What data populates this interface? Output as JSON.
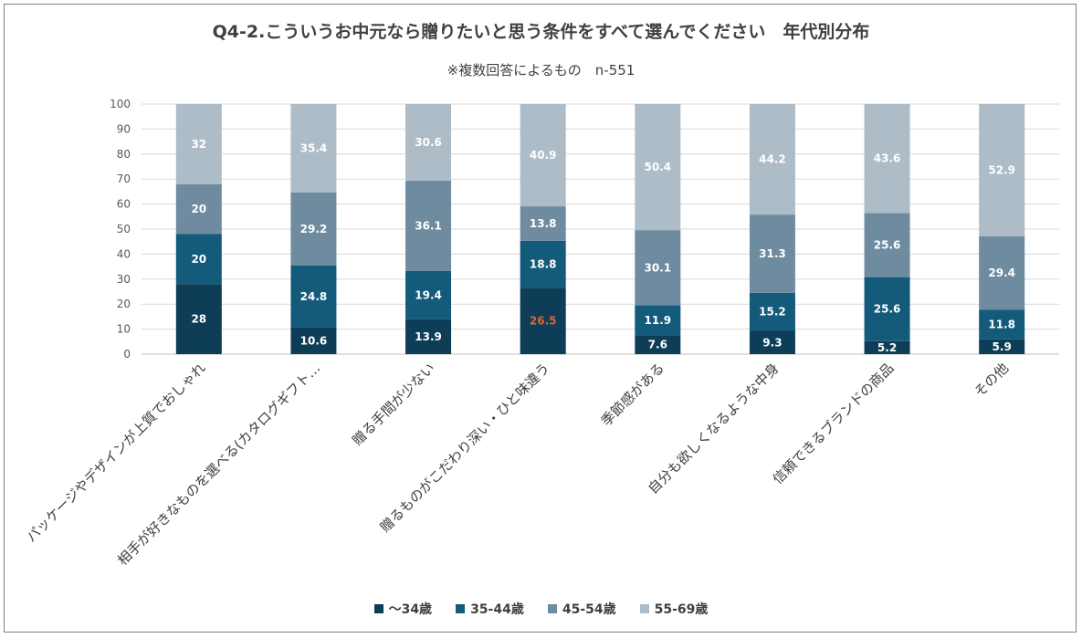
{
  "title": "Q4-2.こういうお中元なら贈りたいと思う条件をすべて選んでください　年代別分布",
  "subtitle": "※複数回答によるもの　n-551",
  "chart_data": {
    "type": "bar",
    "stacked": true,
    "categories": [
      "パッケージやデザインが上質でおしゃれ",
      "相手が好きなものを選べる(カタログギフト…",
      "贈る手間が少ない",
      "贈るものがこだわり深い・ひと味違う",
      "季節感がある",
      "自分も欲しくなるような中身",
      "信頼できるブランドの商品",
      "その他"
    ],
    "series": [
      {
        "name": "〜34歳",
        "color": "#0e3d57",
        "values": [
          28,
          10.6,
          13.9,
          26.5,
          7.6,
          9.3,
          5.2,
          5.9
        ]
      },
      {
        "name": "35-44歳",
        "color": "#145a7a",
        "values": [
          20,
          24.8,
          19.4,
          18.8,
          11.9,
          15.2,
          25.6,
          11.8
        ]
      },
      {
        "name": "45-54歳",
        "color": "#6f8ba0",
        "values": [
          20,
          29.2,
          36.1,
          13.8,
          30.1,
          31.3,
          25.6,
          29.4
        ]
      },
      {
        "name": "55-69歳",
        "color": "#aebcc8",
        "values": [
          32,
          35.4,
          30.6,
          40.9,
          50.4,
          44.2,
          43.6,
          52.9
        ]
      }
    ],
    "highlight_label": {
      "series": 0,
      "index": 3,
      "color": "#e0652e"
    },
    "yticks": [
      0,
      10,
      20,
      30,
      40,
      50,
      60,
      70,
      80,
      90,
      100
    ],
    "ylim": [
      0,
      100
    ],
    "grid": true,
    "legend_position": "bottom"
  }
}
